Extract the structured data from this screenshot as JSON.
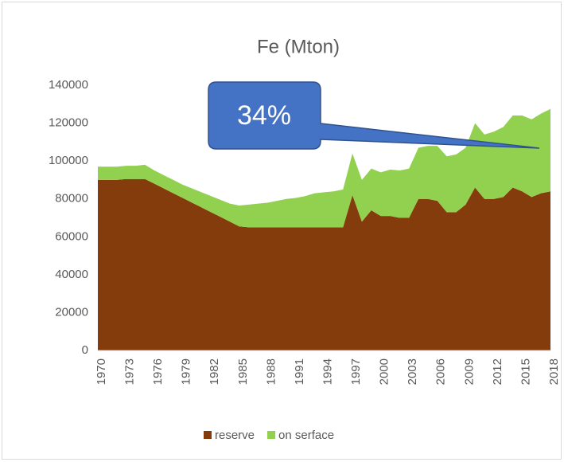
{
  "chart_data": {
    "type": "area",
    "stacked": true,
    "title": "Fe (Mton)",
    "categories": [
      "1970",
      null,
      null,
      "1973",
      null,
      null,
      "1976",
      null,
      null,
      "1979",
      null,
      null,
      "1982",
      null,
      null,
      "1985",
      null,
      null,
      "1988",
      null,
      null,
      "1991",
      null,
      null,
      "1994",
      null,
      null,
      "1997",
      null,
      null,
      "2000",
      null,
      null,
      "2003",
      null,
      null,
      "2006",
      null,
      null,
      "2009",
      null,
      null,
      "2012",
      null,
      null,
      "2015",
      null,
      null,
      "2018"
    ],
    "series": [
      {
        "name": "reserve",
        "color": "#843c0c",
        "values": [
          90000,
          90000,
          90000,
          90500,
          90500,
          90500,
          88000,
          85500,
          83000,
          80500,
          78000,
          75500,
          73000,
          70500,
          68000,
          65500,
          65000,
          65000,
          65000,
          65000,
          65000,
          65000,
          65000,
          65000,
          65000,
          65000,
          65000,
          82000,
          68000,
          74000,
          71000,
          71000,
          70000,
          70000,
          80000,
          80000,
          79000,
          73000,
          73000,
          77000,
          86000,
          80000,
          80000,
          81000,
          86000,
          84000,
          81000,
          83000,
          84000
        ]
      },
      {
        "name": "on serface",
        "color": "#92d050",
        "values": [
          7000,
          7000,
          7000,
          7000,
          7000,
          7500,
          7000,
          7000,
          7000,
          7000,
          7500,
          8000,
          8500,
          9000,
          9500,
          11000,
          12000,
          12500,
          13000,
          14000,
          15000,
          15500,
          16500,
          18000,
          18500,
          19000,
          20000,
          22000,
          22000,
          22000,
          23000,
          24500,
          25000,
          26000,
          27000,
          28000,
          29000,
          29500,
          30500,
          30000,
          34000,
          34000,
          35500,
          37000,
          38000,
          40000,
          41000,
          42000,
          43500
        ]
      }
    ],
    "ylim": [
      0,
      140000
    ],
    "yticks": [
      0,
      20000,
      40000,
      60000,
      80000,
      100000,
      120000,
      140000
    ],
    "legend": "bottom",
    "annotations": [
      "34%"
    ]
  }
}
